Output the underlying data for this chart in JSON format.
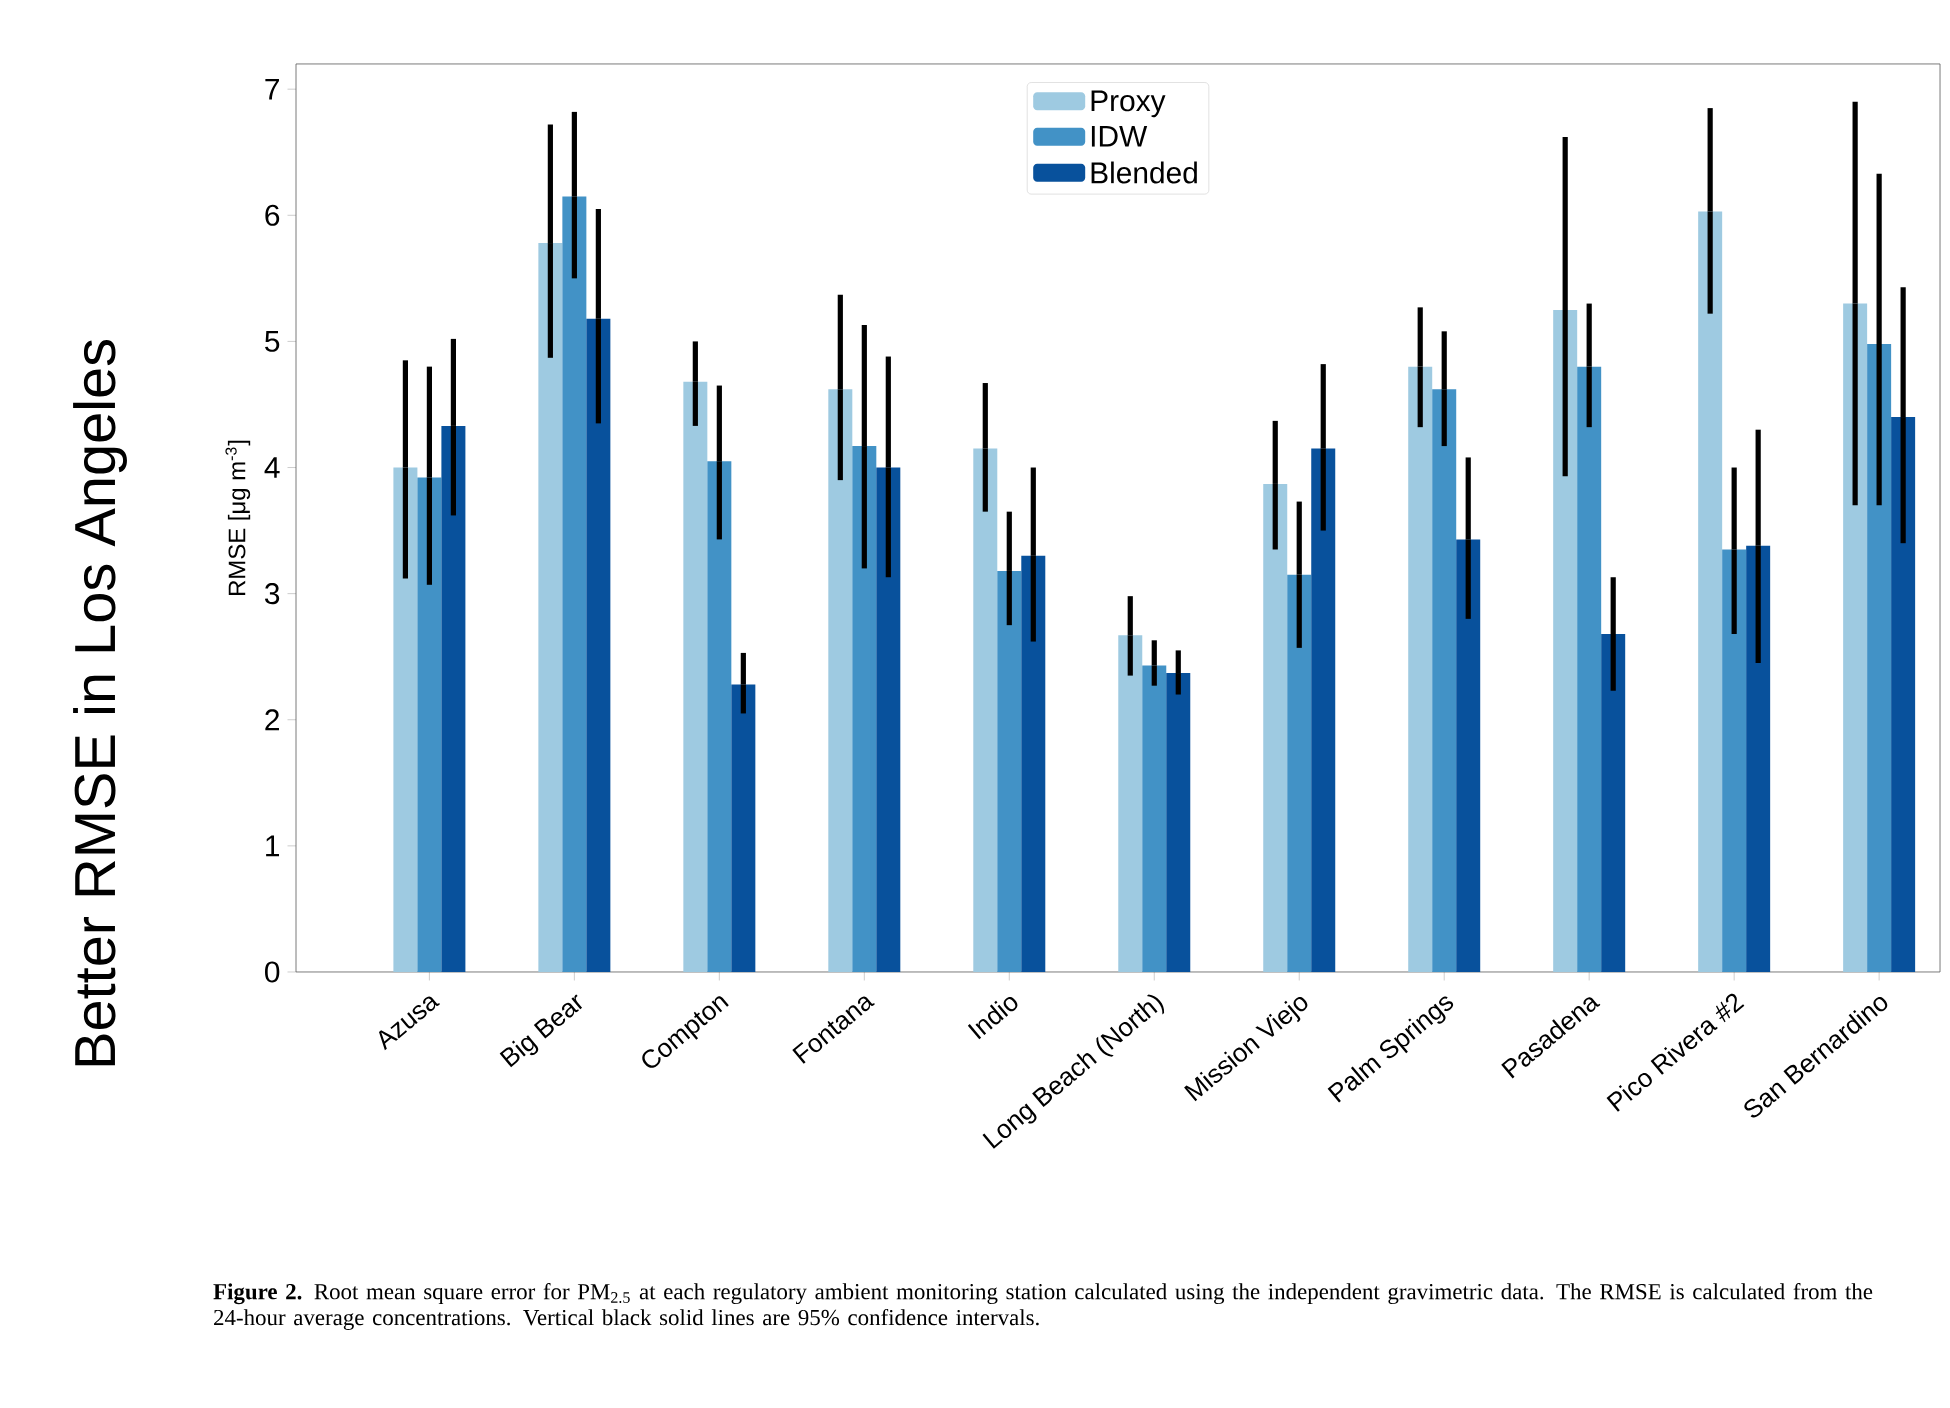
{
  "chart_data": {
    "type": "bar",
    "title": "Better RMSE in Los Angeles",
    "ylabel": "RMSE [μg m$^{-3}$]",
    "categories": [
      "Azusa",
      "Big Bear",
      "Compton",
      "Fontana",
      "Indio",
      "Long Beach (North)",
      "Mission Viejo",
      "Palm Springs",
      "Pasadena",
      "Pico Rivera #2",
      "San Bernardino"
    ],
    "series": [
      {
        "name": "Proxy",
        "color": "#9ecae1",
        "values": [
          4.0,
          5.78,
          4.68,
          4.62,
          4.15,
          2.67,
          3.87,
          4.8,
          5.25,
          6.03,
          5.3
        ],
        "errors": [
          [
            3.12,
            4.85
          ],
          [
            4.87,
            6.72
          ],
          [
            4.33,
            5.0
          ],
          [
            3.9,
            5.37
          ],
          [
            3.65,
            4.67
          ],
          [
            2.35,
            2.98
          ],
          [
            3.35,
            4.37
          ],
          [
            4.32,
            5.27
          ],
          [
            3.93,
            6.62
          ],
          [
            5.22,
            6.85
          ],
          [
            3.7,
            6.9
          ]
        ]
      },
      {
        "name": "IDW",
        "color": "#4292c6",
        "values": [
          3.92,
          6.15,
          4.05,
          4.17,
          3.18,
          2.43,
          3.15,
          4.62,
          4.8,
          3.35,
          4.98
        ],
        "errors": [
          [
            3.07,
            4.8
          ],
          [
            5.5,
            6.82
          ],
          [
            3.43,
            4.65
          ],
          [
            3.2,
            5.13
          ],
          [
            2.75,
            3.65
          ],
          [
            2.27,
            2.63
          ],
          [
            2.57,
            3.73
          ],
          [
            4.17,
            5.08
          ],
          [
            4.32,
            5.3
          ],
          [
            2.68,
            4.0
          ],
          [
            3.7,
            6.33
          ]
        ]
      },
      {
        "name": "Blended",
        "color": "#08519c",
        "values": [
          4.33,
          5.18,
          2.28,
          4.0,
          3.3,
          2.37,
          4.15,
          3.43,
          2.68,
          3.38,
          4.4
        ],
        "errors": [
          [
            3.62,
            5.02
          ],
          [
            4.35,
            6.05
          ],
          [
            2.05,
            2.53
          ],
          [
            3.13,
            4.88
          ],
          [
            2.62,
            4.0
          ],
          [
            2.2,
            2.55
          ],
          [
            3.5,
            4.82
          ],
          [
            2.8,
            4.08
          ],
          [
            2.23,
            3.13
          ],
          [
            2.45,
            4.3
          ],
          [
            3.4,
            5.43
          ]
        ]
      }
    ],
    "ylim": [
      0,
      7.2
    ],
    "yticks": [
      0,
      1,
      2,
      3,
      4,
      5,
      6,
      7
    ],
    "legend": "top",
    "annotations": [
      "**Figure 2.** Root mean square error for PM$_{2.5}$ at each regulatory ambient monitoring station calculated using the independent gravimetric data. The RMSE is calculated from the 24-hour average concentrations. Vertical black solid lines are 95% confidence intervals."
    ]
  }
}
